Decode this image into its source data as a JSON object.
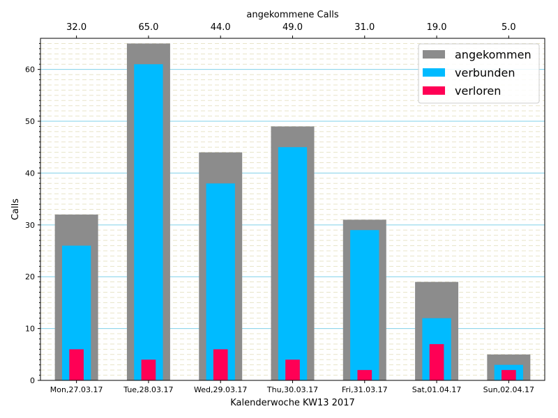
{
  "chart_data": {
    "type": "bar",
    "categories": [
      "Mon,27.03.17",
      "Tue,28.03.17",
      "Wed,29.03.17",
      "Thu,30.03.17",
      "Fri,31.03.17",
      "Sat,01.04.17",
      "Sun,02.04.17"
    ],
    "series": [
      {
        "name": "angekommen",
        "values": [
          32,
          65,
          44,
          49,
          31,
          19,
          5
        ],
        "color": "#8c8c8c"
      },
      {
        "name": "verbunden",
        "values": [
          26,
          61,
          38,
          45,
          29,
          12,
          3
        ],
        "color": "#00bbff"
      },
      {
        "name": "verloren",
        "values": [
          6,
          4,
          6,
          4,
          2,
          7,
          2
        ],
        "color": "#ff0055"
      }
    ],
    "top_labels": [
      "32.0",
      "65.0",
      "44.0",
      "49.0",
      "31.0",
      "19.0",
      "5.0"
    ],
    "top_axis_label": "angekommene Calls",
    "xlabel": "Kalenderwoche KW13 2017",
    "ylabel": "Calls",
    "ylim": [
      0,
      66
    ],
    "yticks": [
      0,
      10,
      20,
      30,
      40,
      50,
      60
    ],
    "grid": true,
    "legend_position": "upper right"
  }
}
